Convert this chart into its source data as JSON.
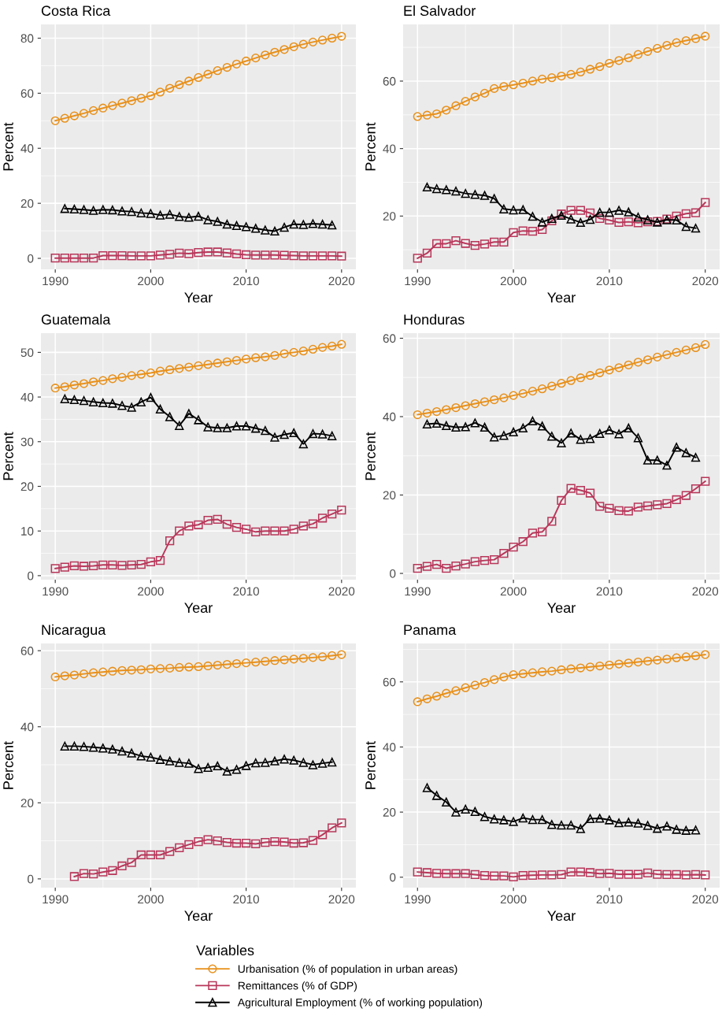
{
  "chart_data": [
    {
      "type": "line",
      "title": "Costa Rica",
      "xlabel": "Year",
      "ylabel": "Percent",
      "xlim": [
        1988.5,
        2021.5
      ],
      "ylim": [
        -4,
        85
      ],
      "xticks": [
        1990,
        2000,
        2010,
        2020
      ],
      "yticks": [
        0,
        20,
        40,
        60,
        80
      ],
      "grid": true,
      "legend": "bottom",
      "legend_title": "Variables",
      "x": [
        1990,
        1991,
        1992,
        1993,
        1994,
        1995,
        1996,
        1997,
        1998,
        1999,
        2000,
        2001,
        2002,
        2003,
        2004,
        2005,
        2006,
        2007,
        2008,
        2009,
        2010,
        2011,
        2012,
        2013,
        2014,
        2015,
        2016,
        2017,
        2018,
        2019,
        2020
      ],
      "series": [
        {
          "name": "Urbanisation (% of population in urban areas)",
          "color": "#e8901a",
          "marker": "circle",
          "values": [
            50,
            50.9,
            51.8,
            52.7,
            53.7,
            54.6,
            55.5,
            56.4,
            57.3,
            58.2,
            59.1,
            60.4,
            61.8,
            63.1,
            64.4,
            65.7,
            66.9,
            68.2,
            69.4,
            70.6,
            71.7,
            72.8,
            73.9,
            74.9,
            75.9,
            76.9,
            77.8,
            78.6,
            79.3,
            80.0,
            80.7
          ]
        },
        {
          "name": "Remittances (% of GDP)",
          "color": "#b8375a",
          "marker": "square",
          "values": [
            0.1,
            0.1,
            0.1,
            0.1,
            0.1,
            1.0,
            1.0,
            1.0,
            0.9,
            0.9,
            0.9,
            1.2,
            1.5,
            1.9,
            1.7,
            2.1,
            2.3,
            2.3,
            2.0,
            1.6,
            1.3,
            1.2,
            1.2,
            1.2,
            1.1,
            1.0,
            0.9,
            0.9,
            0.9,
            0.9,
            0.8
          ]
        },
        {
          "name": "Agricultural Employment (% of working population)",
          "color": "#000000",
          "marker": "triangle",
          "values": [
            null,
            18.1,
            17.9,
            17.7,
            17.4,
            17.7,
            17.6,
            17.2,
            17.0,
            16.5,
            16.3,
            15.7,
            16.0,
            15.2,
            14.9,
            15.3,
            14.0,
            13.4,
            12.4,
            11.9,
            11.5,
            10.9,
            10.3,
            9.9,
            11.3,
            12.4,
            12.3,
            12.6,
            12.4,
            12.1,
            null
          ]
        }
      ]
    },
    {
      "type": "line",
      "title": "El Salvador",
      "xlabel": "Year",
      "ylabel": "Percent",
      "xlim": [
        1988.5,
        2021.5
      ],
      "ylim": [
        4.2,
        76.8
      ],
      "xticks": [
        1990,
        2000,
        2010,
        2020
      ],
      "yticks": [
        20,
        40,
        60
      ],
      "grid": true,
      "x": [
        1990,
        1991,
        1992,
        1993,
        1994,
        1995,
        1996,
        1997,
        1998,
        1999,
        2000,
        2001,
        2002,
        2003,
        2004,
        2005,
        2006,
        2007,
        2008,
        2009,
        2010,
        2011,
        2012,
        2013,
        2014,
        2015,
        2016,
        2017,
        2018,
        2019,
        2020
      ],
      "series": [
        {
          "color": "#e8901a",
          "marker": "circle",
          "values": [
            49.5,
            49.9,
            50.3,
            51.4,
            52.7,
            54.0,
            55.3,
            56.4,
            57.8,
            58.4,
            58.9,
            59.4,
            60.0,
            60.6,
            61.0,
            61.5,
            62.0,
            62.7,
            63.5,
            64.3,
            65.3,
            66.1,
            66.9,
            67.9,
            68.8,
            69.7,
            70.6,
            71.4,
            72.0,
            72.6,
            73.3
          ]
        },
        {
          "color": "#b8375a",
          "marker": "square",
          "values": [
            7.5,
            9.0,
            11.8,
            11.8,
            12.7,
            11.9,
            11.3,
            11.7,
            12.3,
            12.3,
            15.1,
            15.6,
            15.5,
            16.0,
            18.6,
            20.6,
            21.7,
            21.7,
            20.9,
            19.3,
            18.8,
            18.1,
            18.3,
            18.0,
            18.3,
            18.4,
            19.1,
            20.0,
            20.7,
            21.0,
            24.0
          ]
        },
        {
          "color": "#000000",
          "marker": "triangle",
          "values": [
            null,
            28.6,
            28.1,
            27.8,
            27.4,
            26.7,
            26.4,
            26.1,
            25.2,
            22.1,
            21.8,
            21.9,
            19.9,
            18.2,
            19.3,
            20.2,
            19.1,
            18.1,
            19.0,
            21.1,
            21.1,
            21.7,
            21.2,
            19.7,
            18.9,
            18.2,
            18.9,
            18.8,
            16.9,
            16.4,
            null
          ]
        }
      ]
    },
    {
      "type": "line",
      "title": "Guatemala",
      "xlabel": "Year",
      "ylabel": "Percent",
      "xlim": [
        1988.5,
        2021.5
      ],
      "ylim": [
        -0.9,
        54.3
      ],
      "xticks": [
        1990,
        2000,
        2010,
        2020
      ],
      "yticks": [
        0,
        10,
        20,
        30,
        40,
        50
      ],
      "grid": true,
      "x": [
        1990,
        1991,
        1992,
        1993,
        1994,
        1995,
        1996,
        1997,
        1998,
        1999,
        2000,
        2001,
        2002,
        2003,
        2004,
        2005,
        2006,
        2007,
        2008,
        2009,
        2010,
        2011,
        2012,
        2013,
        2014,
        2015,
        2016,
        2017,
        2018,
        2019,
        2020
      ],
      "series": [
        {
          "color": "#e8901a",
          "marker": "circle",
          "values": [
            42.0,
            42.3,
            42.7,
            43.0,
            43.4,
            43.7,
            44.1,
            44.4,
            44.8,
            45.1,
            45.4,
            45.8,
            46.1,
            46.4,
            46.7,
            47.0,
            47.3,
            47.6,
            47.9,
            48.2,
            48.5,
            48.8,
            49.0,
            49.3,
            49.7,
            50.0,
            50.3,
            50.7,
            51.1,
            51.4,
            51.8
          ]
        },
        {
          "color": "#b8375a",
          "marker": "square",
          "values": [
            1.6,
            1.9,
            2.2,
            2.1,
            2.2,
            2.4,
            2.4,
            2.3,
            2.4,
            2.5,
            3.1,
            3.4,
            7.8,
            10.0,
            11.1,
            11.4,
            12.4,
            12.6,
            11.5,
            10.8,
            10.4,
            9.8,
            10.0,
            10.0,
            10.0,
            10.4,
            11.1,
            11.6,
            12.9,
            13.8,
            14.7
          ]
        },
        {
          "color": "#000000",
          "marker": "triangle",
          "values": [
            null,
            39.6,
            39.4,
            39.2,
            38.9,
            38.7,
            38.6,
            38.1,
            37.7,
            38.9,
            39.9,
            37.3,
            35.6,
            33.6,
            36.3,
            34.9,
            33.3,
            33.1,
            33.1,
            33.5,
            33.5,
            33.0,
            32.5,
            31.0,
            31.6,
            32.0,
            29.5,
            31.8,
            31.7,
            31.3,
            null
          ]
        }
      ]
    },
    {
      "type": "line",
      "title": "Honduras",
      "xlabel": "Year",
      "ylabel": "Percent",
      "xlim": [
        1988.5,
        2021.5
      ],
      "ylim": [
        -1.6,
        61.3
      ],
      "xticks": [
        1990,
        2000,
        2010,
        2020
      ],
      "yticks": [
        0,
        20,
        40,
        60
      ],
      "grid": true,
      "x": [
        1990,
        1991,
        1992,
        1993,
        1994,
        1995,
        1996,
        1997,
        1998,
        1999,
        2000,
        2001,
        2002,
        2003,
        2004,
        2005,
        2006,
        2007,
        2008,
        2009,
        2010,
        2011,
        2012,
        2013,
        2014,
        2015,
        2016,
        2017,
        2018,
        2019,
        2020
      ],
      "series": [
        {
          "color": "#e8901a",
          "marker": "circle",
          "values": [
            40.5,
            40.9,
            41.3,
            41.8,
            42.3,
            42.8,
            43.3,
            43.8,
            44.3,
            44.8,
            45.4,
            45.9,
            46.5,
            47.1,
            47.8,
            48.5,
            49.2,
            49.9,
            50.5,
            51.2,
            51.9,
            52.5,
            53.2,
            53.9,
            54.5,
            55.2,
            55.8,
            56.4,
            57.0,
            57.6,
            58.4
          ]
        },
        {
          "color": "#b8375a",
          "marker": "square",
          "values": [
            1.3,
            1.8,
            2.3,
            1.3,
            1.9,
            2.4,
            3.0,
            3.3,
            3.5,
            5.1,
            6.7,
            8.1,
            10.3,
            10.6,
            13.3,
            18.6,
            21.7,
            21.2,
            20.5,
            17.1,
            16.6,
            16.0,
            15.9,
            16.9,
            17.2,
            17.5,
            17.8,
            18.8,
            19.9,
            21.6,
            23.5
          ]
        },
        {
          "color": "#000000",
          "marker": "triangle",
          "values": [
            null,
            38.1,
            38.3,
            37.7,
            37.3,
            37.4,
            38.4,
            37.3,
            34.8,
            35.2,
            36.1,
            37.1,
            38.9,
            37.6,
            35.0,
            33.3,
            35.8,
            34.2,
            34.4,
            35.7,
            36.6,
            35.6,
            37.1,
            34.6,
            28.9,
            28.9,
            27.6,
            32.2,
            30.8,
            29.6,
            null
          ]
        }
      ]
    },
    {
      "type": "line",
      "title": "Nicaragua",
      "xlabel": "Year",
      "ylabel": "Percent",
      "xlim": [
        1988.5,
        2021.5
      ],
      "ylim": [
        -2.3,
        61.9
      ],
      "xticks": [
        1990,
        2000,
        2010,
        2020
      ],
      "yticks": [
        0,
        20,
        40,
        60
      ],
      "grid": true,
      "x": [
        1990,
        1991,
        1992,
        1993,
        1994,
        1995,
        1996,
        1997,
        1998,
        1999,
        2000,
        2001,
        2002,
        2003,
        2004,
        2005,
        2006,
        2007,
        2008,
        2009,
        2010,
        2011,
        2012,
        2013,
        2014,
        2015,
        2016,
        2017,
        2018,
        2019,
        2020
      ],
      "series": [
        {
          "color": "#e8901a",
          "marker": "circle",
          "values": [
            53.1,
            53.4,
            53.6,
            53.9,
            54.2,
            54.4,
            54.6,
            54.8,
            54.9,
            55.0,
            55.2,
            55.3,
            55.4,
            55.6,
            55.7,
            55.8,
            56.0,
            56.2,
            56.4,
            56.6,
            56.8,
            57.0,
            57.2,
            57.4,
            57.6,
            57.8,
            58.0,
            58.2,
            58.4,
            58.7,
            59.0
          ]
        },
        {
          "color": "#b8375a",
          "marker": "square",
          "values": [
            null,
            null,
            0.6,
            1.4,
            1.3,
            1.8,
            2.2,
            3.4,
            4.3,
            6.3,
            6.3,
            6.3,
            7.2,
            8.2,
            9.0,
            9.8,
            10.3,
            10.0,
            9.6,
            9.4,
            9.4,
            9.2,
            9.6,
            9.8,
            9.7,
            9.4,
            9.5,
            10.1,
            11.6,
            13.4,
            14.7
          ]
        },
        {
          "color": "#000000",
          "marker": "triangle",
          "values": [
            null,
            34.9,
            34.9,
            34.8,
            34.6,
            34.4,
            34.1,
            33.6,
            33.1,
            32.3,
            32.0,
            31.4,
            31.0,
            30.6,
            30.4,
            29.0,
            29.3,
            29.7,
            28.3,
            28.8,
            29.8,
            30.5,
            30.6,
            31.0,
            31.5,
            31.2,
            30.6,
            30.0,
            30.4,
            30.7,
            null
          ]
        }
      ]
    },
    {
      "type": "line",
      "title": "Panama",
      "xlabel": "Year",
      "ylabel": "Percent",
      "xlim": [
        1988.5,
        2021.5
      ],
      "ylim": [
        -3.2,
        71.8
      ],
      "xticks": [
        1990,
        2000,
        2010,
        2020
      ],
      "yticks": [
        0,
        20,
        40,
        60
      ],
      "grid": true,
      "x": [
        1990,
        1991,
        1992,
        1993,
        1994,
        1995,
        1996,
        1997,
        1998,
        1999,
        2000,
        2001,
        2002,
        2003,
        2004,
        2005,
        2006,
        2007,
        2008,
        2009,
        2010,
        2011,
        2012,
        2013,
        2014,
        2015,
        2016,
        2017,
        2018,
        2019,
        2020
      ],
      "series": [
        {
          "color": "#e8901a",
          "marker": "circle",
          "values": [
            53.9,
            54.8,
            55.6,
            56.5,
            57.3,
            58.2,
            59.0,
            59.8,
            60.7,
            61.5,
            62.2,
            62.5,
            62.8,
            63.1,
            63.3,
            63.7,
            64.0,
            64.3,
            64.6,
            64.9,
            65.2,
            65.5,
            65.8,
            66.1,
            66.4,
            66.7,
            67.0,
            67.4,
            67.7,
            68.0,
            68.4
          ]
        },
        {
          "color": "#b8375a",
          "marker": "square",
          "values": [
            1.6,
            1.4,
            1.2,
            1.1,
            1.1,
            1.1,
            0.8,
            0.5,
            0.4,
            0.4,
            0.1,
            0.5,
            0.6,
            0.7,
            0.7,
            0.8,
            1.6,
            1.6,
            1.4,
            1.1,
            1.2,
            0.9,
            0.9,
            0.9,
            1.3,
            0.9,
            0.8,
            0.8,
            0.7,
            0.8,
            0.7
          ]
        },
        {
          "color": "#000000",
          "marker": "triangle",
          "values": [
            null,
            27.5,
            25.1,
            23.1,
            20.0,
            20.9,
            20.2,
            18.6,
            17.9,
            17.6,
            17.1,
            18.2,
            17.7,
            17.7,
            16.2,
            16.0,
            16.0,
            14.9,
            18.0,
            18.1,
            17.6,
            16.7,
            16.9,
            16.6,
            15.9,
            15.0,
            15.7,
            14.7,
            14.4,
            14.5,
            null
          ]
        }
      ]
    }
  ]
}
